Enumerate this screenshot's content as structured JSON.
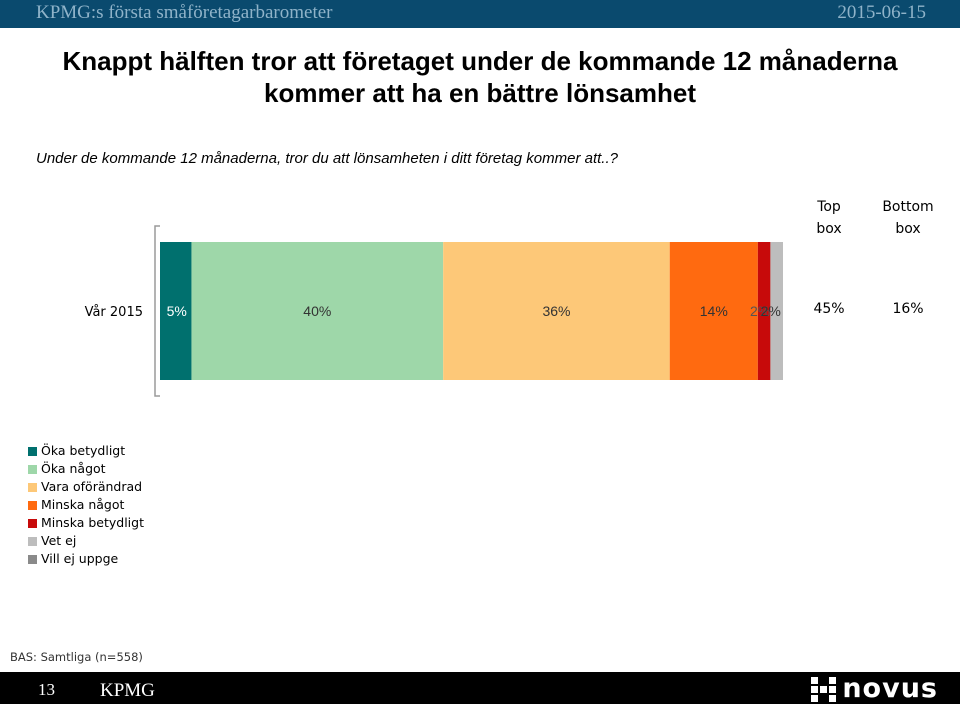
{
  "header": {
    "left_text": "KPMG:s första småföretagarbarometer",
    "date": "2015-06-15"
  },
  "headline": {
    "line1": "Knappt hälften tror att företaget under de kommande 12 månaderna",
    "line2": "kommer att ha en bättre lönsamhet"
  },
  "question": "Under de kommande 12 månaderna, tror du att lönsamheten i ditt företag kommer att..?",
  "chart_data": {
    "type": "bar",
    "orientation": "horizontal",
    "stacked": true,
    "categories": [
      "Vår 2015"
    ],
    "series": [
      {
        "name": "Öka betydligt",
        "values": [
          5
        ],
        "label": "5%",
        "color": "#00706e"
      },
      {
        "name": "Öka något",
        "values": [
          40
        ],
        "label": "40%",
        "color": "#9ed7a9"
      },
      {
        "name": "Vara oförändrad",
        "values": [
          36
        ],
        "label": "36%",
        "color": "#fdc878"
      },
      {
        "name": "Minska något",
        "values": [
          14
        ],
        "label": "14%",
        "color": "#ff6a10"
      },
      {
        "name": "Minska betydligt",
        "values": [
          2
        ],
        "label": "2%",
        "color": "#c70a0a"
      },
      {
        "name": "Vet ej",
        "values": [
          2
        ],
        "label": "2%",
        "color": "#bdbdbd"
      },
      {
        "name": "Vill ej uppge",
        "values": [
          0
        ],
        "label": "",
        "color": "#8a8a8a"
      }
    ],
    "summary_columns": [
      {
        "header_line1": "Top",
        "header_line2": "box",
        "value": "45%"
      },
      {
        "header_line1": "Bottom",
        "header_line2": "box",
        "value": "16%"
      }
    ],
    "xlim": [
      0,
      99
    ],
    "grid": false,
    "legend": "bottom-left"
  },
  "footer": {
    "base": "BAS: Samtliga (n=558)",
    "page_number": "13",
    "brand": "KPMG",
    "logo_text": "novus"
  }
}
